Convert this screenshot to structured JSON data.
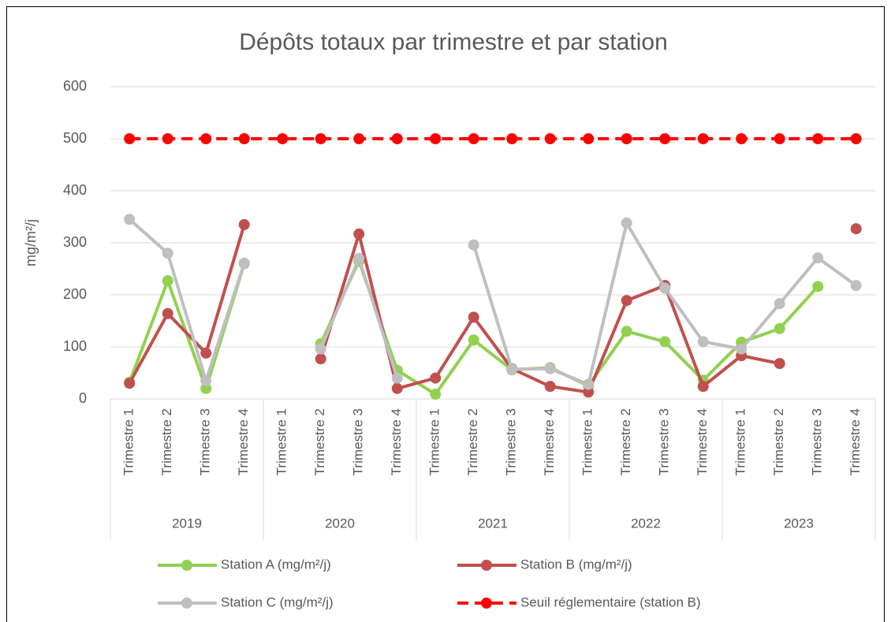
{
  "chart_data": {
    "type": "line",
    "title": "Dépôts totaux par trimestre et par station",
    "y_label": "mg/m²/j",
    "categories": [
      "Trimestre 1",
      "Trimestre 2",
      "Trimestre 3",
      "Trimestre 4",
      "Trimestre 1",
      "Trimestre 2",
      "Trimestre 3",
      "Trimestre 4",
      "Trimestre 1",
      "Trimestre 2",
      "Trimestre 3",
      "Trimestre 4",
      "Trimestre 1",
      "Trimestre 2",
      "Trimestre 3",
      "Trimestre 4",
      "Trimestre 1",
      "Trimestre 2",
      "Trimestre 3",
      "Trimestre 4"
    ],
    "category_groups": [
      "2019",
      "2020",
      "2021",
      "2022",
      "2023"
    ],
    "ylim": [
      0,
      600
    ],
    "yticks": [
      0,
      100,
      200,
      300,
      400,
      500,
      600
    ],
    "grid": true,
    "legend": "bottom",
    "series": [
      {
        "name": "Station A (mg/m²/j)",
        "color": "#92d050",
        "values": [
          32,
          227,
          20,
          260,
          null,
          106,
          265,
          55,
          9,
          113,
          56,
          60,
          25,
          130,
          110,
          36,
          109,
          135,
          216,
          null
        ]
      },
      {
        "name": "Station B (mg/m²/j)",
        "color": "#c0504d",
        "values": [
          30,
          164,
          88,
          335,
          null,
          77,
          317,
          20,
          40,
          157,
          58,
          24,
          13,
          189,
          218,
          24,
          83,
          68,
          null,
          327
        ]
      },
      {
        "name": "Station C (mg/m²/j)",
        "color": "#bfbfbf",
        "values": [
          345,
          280,
          35,
          261,
          null,
          96,
          270,
          40,
          null,
          296,
          57,
          58,
          28,
          338,
          213,
          110,
          96,
          183,
          271,
          218
        ]
      },
      {
        "name": "Seuil réglementaire (station B)",
        "color": "#ff0000",
        "dashed": true,
        "values": [
          500,
          500,
          500,
          500,
          500,
          500,
          500,
          500,
          500,
          500,
          500,
          500,
          500,
          500,
          500,
          500,
          500,
          500,
          500,
          500
        ]
      }
    ]
  }
}
